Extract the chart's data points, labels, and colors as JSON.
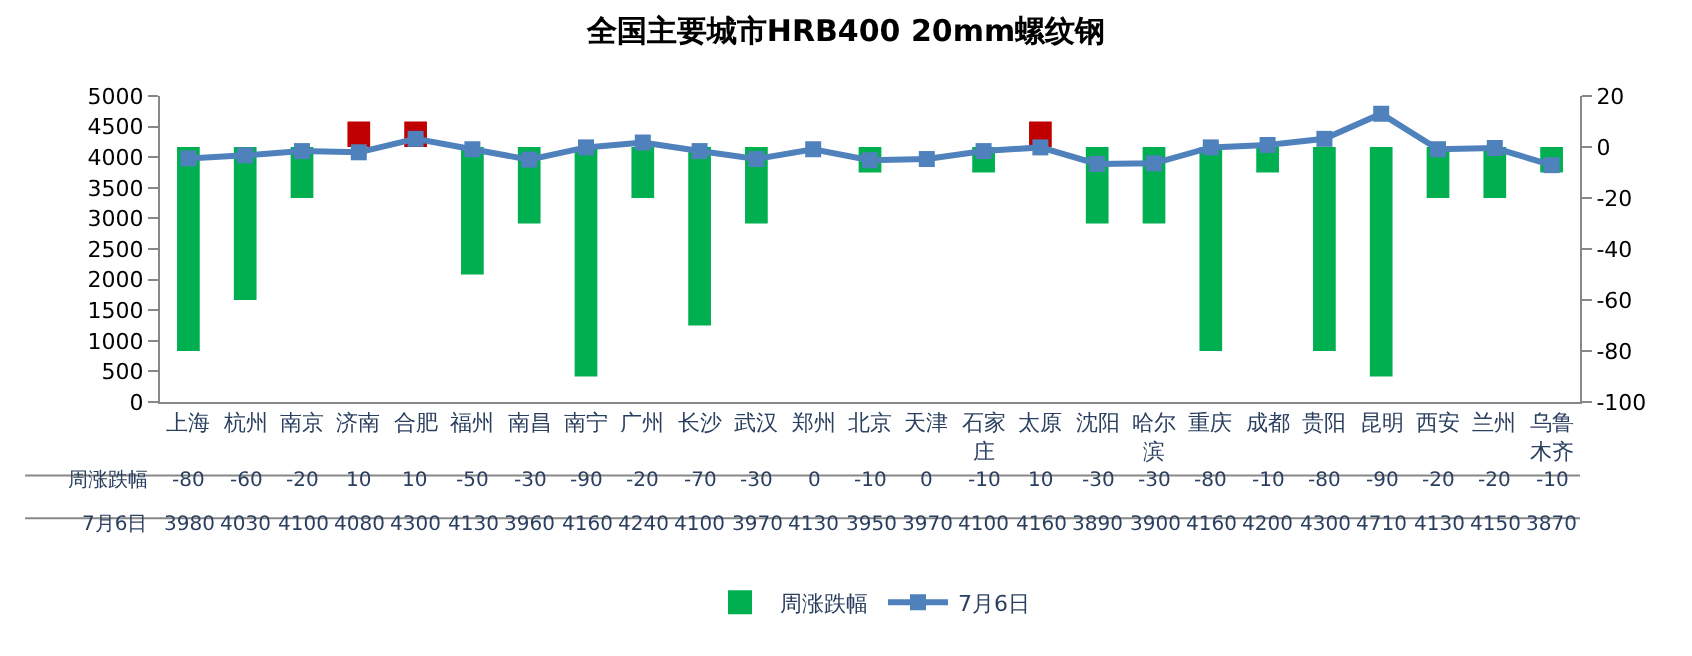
{
  "chart_data": {
    "type": "bar",
    "title": "全国主要城市HRB400 20mm螺纹钢",
    "categories": [
      "上海",
      "杭州",
      "南京",
      "济南",
      "合肥",
      "福州",
      "南昌",
      "南宁",
      "广州",
      "长沙",
      "武汉",
      "郑州",
      "北京",
      "天津",
      "石家庄",
      "太原",
      "沈阳",
      "哈尔滨",
      "重庆",
      "成都",
      "贵阳",
      "昆明",
      "西安",
      "兰州",
      "乌鲁木齐"
    ],
    "series": [
      {
        "name": "周涨跌幅",
        "axis": "y2",
        "colors": [
          "#00b050",
          "#00b050",
          "#00b050",
          "#c00000",
          "#c00000",
          "#00b050",
          "#00b050",
          "#00b050",
          "#00b050",
          "#00b050",
          "#00b050",
          "#00b050",
          "#00b050",
          "#00b050",
          "#00b050",
          "#c00000",
          "#00b050",
          "#00b050",
          "#00b050",
          "#00b050",
          "#00b050",
          "#00b050",
          "#00b050",
          "#00b050",
          "#00b050"
        ],
        "values": [
          -80,
          -60,
          -20,
          10,
          10,
          -50,
          -30,
          -90,
          -20,
          -70,
          -30,
          0,
          -10,
          0,
          -10,
          10,
          -30,
          -30,
          -80,
          -10,
          -80,
          -90,
          -20,
          -20,
          -10
        ]
      },
      {
        "name": "7月6日",
        "type": "line",
        "color": "#4f81bd",
        "marker": "square",
        "values": [
          3980,
          4030,
          4100,
          4080,
          4300,
          4130,
          3960,
          4160,
          4240,
          4100,
          3970,
          4130,
          3950,
          3970,
          4100,
          4160,
          3890,
          3900,
          4160,
          4200,
          4300,
          4710,
          4130,
          4150,
          3870
        ]
      }
    ],
    "ylim": [
      0,
      5000
    ],
    "yticks": [
      0,
      500,
      1000,
      1500,
      2000,
      2500,
      3000,
      3500,
      4000,
      4500,
      5000
    ],
    "y2lim": [
      -100,
      20
    ],
    "y2ticks": [
      -100,
      -80,
      -60,
      -40,
      -20,
      0,
      20
    ],
    "data_labels": true,
    "legend": "bottom"
  }
}
